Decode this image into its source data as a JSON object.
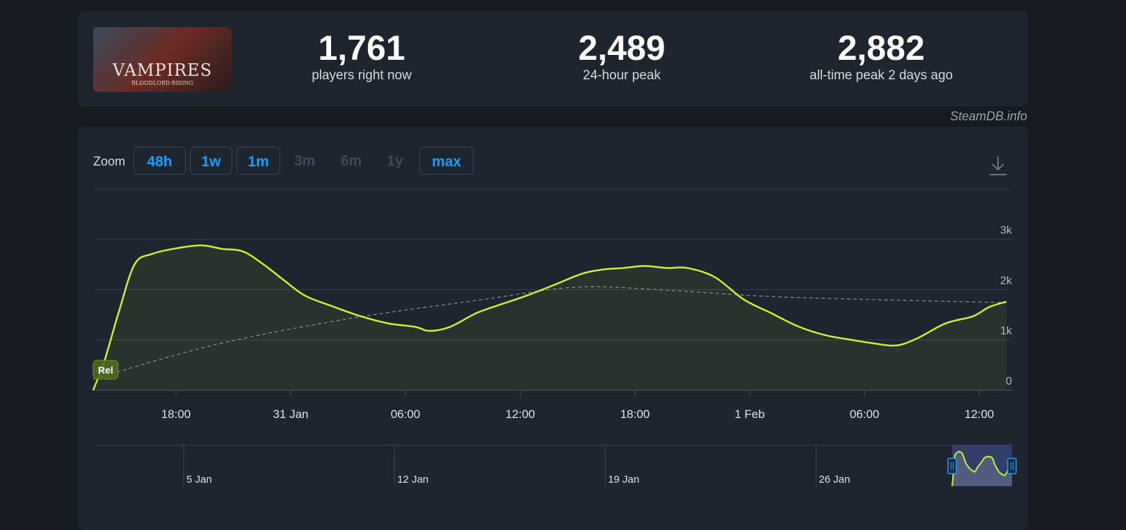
{
  "game": {
    "logo_text": "VAMPIRES",
    "logo_subtitle": "BLOODLORD·RISING"
  },
  "stats": [
    {
      "value": "1,761",
      "label": "players right now"
    },
    {
      "value": "2,489",
      "label": "24-hour peak"
    },
    {
      "value": "2,882",
      "label": "all-time peak 2 days ago"
    }
  ],
  "credit": "SteamDB.info",
  "zoom": {
    "label": "Zoom",
    "buttons": [
      {
        "label": "48h",
        "enabled": true
      },
      {
        "label": "1w",
        "enabled": true
      },
      {
        "label": "1m",
        "enabled": true
      },
      {
        "label": "3m",
        "enabled": false
      },
      {
        "label": "6m",
        "enabled": false
      },
      {
        "label": "1y",
        "enabled": false
      },
      {
        "label": "max",
        "enabled": true
      }
    ]
  },
  "icons": {
    "download": "download-icon"
  },
  "colors": {
    "line": "#c6f432",
    "accent": "#1a9fff",
    "trend": "#8a929c",
    "selection": "#3a4a86"
  },
  "chart_data": {
    "type": "line",
    "x_range": [
      "2025-01-30T13:40",
      "2025-02-01T13:25"
    ],
    "ylim": [
      0,
      3500
    ],
    "y_ticks": [
      {
        "value": 0,
        "label": "0"
      },
      {
        "value": 1000,
        "label": "1k"
      },
      {
        "value": 2000,
        "label": "2k"
      },
      {
        "value": 3000,
        "label": "3k"
      }
    ],
    "x_ticks": [
      {
        "t": "2025-01-30T18:00",
        "label": "18:00"
      },
      {
        "t": "2025-01-31T00:00",
        "label": "31 Jan"
      },
      {
        "t": "2025-01-31T06:00",
        "label": "06:00"
      },
      {
        "t": "2025-01-31T12:00",
        "label": "12:00"
      },
      {
        "t": "2025-01-31T18:00",
        "label": "18:00"
      },
      {
        "t": "2025-02-01T00:00",
        "label": "1 Feb"
      },
      {
        "t": "2025-02-01T06:00",
        "label": "06:00"
      },
      {
        "t": "2025-02-01T12:00",
        "label": "12:00"
      }
    ],
    "grid": true,
    "flag": {
      "t": "2025-01-30T13:40",
      "label": "Rel"
    },
    "series": [
      {
        "points": [
          [
            "2025-01-30T13:40",
            0
          ],
          [
            "2025-01-30T14:15",
            570
          ],
          [
            "2025-01-30T15:00",
            1540
          ],
          [
            "2025-01-30T15:50",
            2500
          ],
          [
            "2025-01-30T16:45",
            2710
          ],
          [
            "2025-01-30T18:00",
            2820
          ],
          [
            "2025-01-30T19:20",
            2880
          ],
          [
            "2025-01-30T20:25",
            2810
          ],
          [
            "2025-01-30T21:30",
            2760
          ],
          [
            "2025-01-30T22:35",
            2500
          ],
          [
            "2025-01-30T23:40",
            2180
          ],
          [
            "2025-01-31T00:45",
            1880
          ],
          [
            "2025-01-31T02:10",
            1670
          ],
          [
            "2025-01-31T03:40",
            1470
          ],
          [
            "2025-01-31T05:05",
            1330
          ],
          [
            "2025-01-31T06:30",
            1260
          ],
          [
            "2025-01-31T07:15",
            1180
          ],
          [
            "2025-01-31T08:20",
            1260
          ],
          [
            "2025-01-31T09:45",
            1540
          ],
          [
            "2025-01-31T11:15",
            1740
          ],
          [
            "2025-01-31T12:20",
            1880
          ],
          [
            "2025-01-31T13:45",
            2090
          ],
          [
            "2025-01-31T15:15",
            2320
          ],
          [
            "2025-01-31T16:20",
            2400
          ],
          [
            "2025-01-31T17:25",
            2430
          ],
          [
            "2025-01-31T18:30",
            2470
          ],
          [
            "2025-01-31T19:40",
            2430
          ],
          [
            "2025-01-31T20:45",
            2430
          ],
          [
            "2025-01-31T22:10",
            2250
          ],
          [
            "2025-01-31T23:40",
            1810
          ],
          [
            "2025-02-01T01:05",
            1540
          ],
          [
            "2025-02-01T02:35",
            1260
          ],
          [
            "2025-02-01T04:00",
            1090
          ],
          [
            "2025-02-01T05:30",
            990
          ],
          [
            "2025-02-01T06:30",
            930
          ],
          [
            "2025-02-01T07:40",
            890
          ],
          [
            "2025-02-01T08:45",
            1030
          ],
          [
            "2025-02-01T10:15",
            1330
          ],
          [
            "2025-02-01T11:40",
            1470
          ],
          [
            "2025-02-01T12:30",
            1650
          ],
          [
            "2025-02-01T13:25",
            1761
          ]
        ]
      },
      {
        "style": "dashed",
        "points": [
          [
            "2025-01-30T13:40",
            220
          ],
          [
            "2025-01-30T20:00",
            900
          ],
          [
            "2025-01-31T03:00",
            1420
          ],
          [
            "2025-01-31T10:00",
            1800
          ],
          [
            "2025-01-31T15:00",
            2050
          ],
          [
            "2025-01-31T20:00",
            1980
          ],
          [
            "2025-02-01T02:00",
            1850
          ],
          [
            "2025-02-01T13:25",
            1740
          ]
        ]
      }
    ],
    "navigator": {
      "ticks": [
        {
          "t": "2025-01-05",
          "label": "5 Jan"
        },
        {
          "t": "2025-01-12",
          "label": "12 Jan"
        },
        {
          "t": "2025-01-19",
          "label": "19 Jan"
        },
        {
          "t": "2025-01-26",
          "label": "26 Jan"
        }
      ]
    }
  }
}
